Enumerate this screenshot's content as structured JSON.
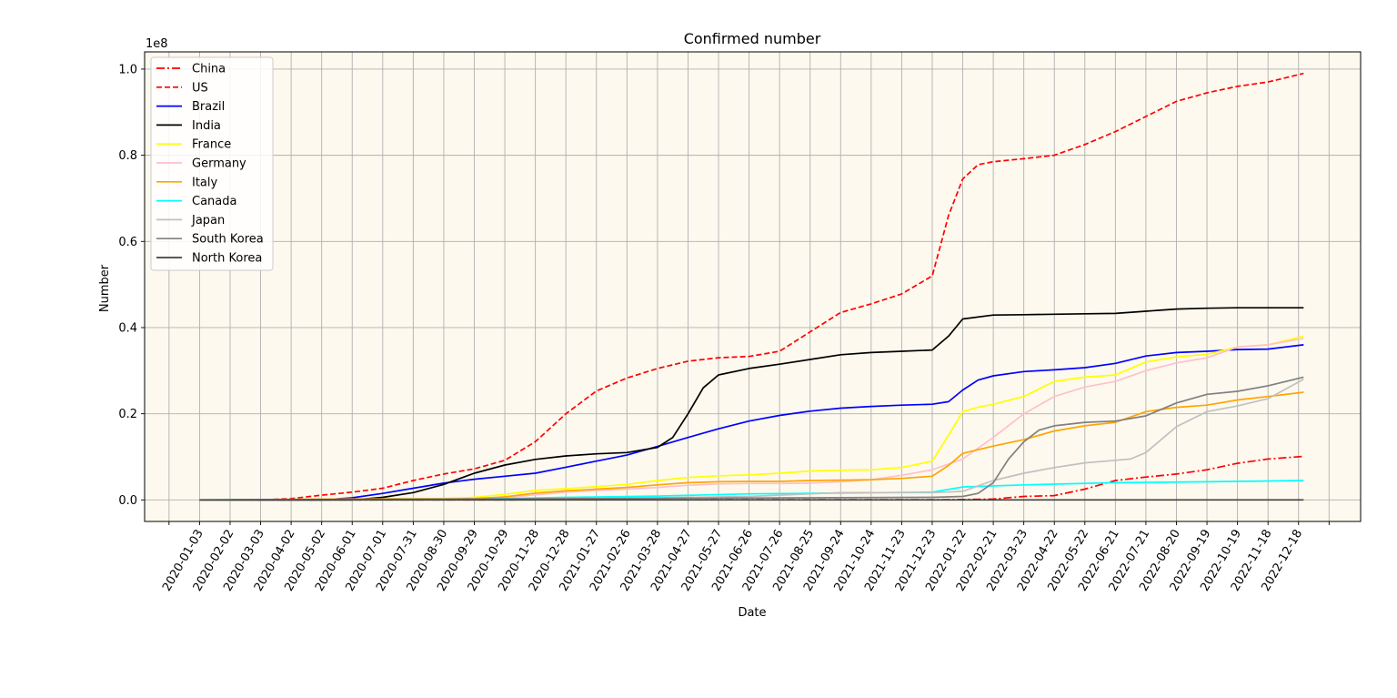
{
  "chart_data": {
    "type": "line",
    "title": "Confirmed number",
    "xlabel": "Date",
    "ylabel": "Number",
    "y_offset_label": "1e8",
    "ylim": [
      -0.05,
      1.04
    ],
    "y_unit_multiplier": 100000000,
    "yticks": [
      0.0,
      0.2,
      0.4,
      0.6,
      0.8,
      1.0
    ],
    "ytick_labels": [
      "0.0",
      "0.2",
      "0.4",
      "0.6",
      "0.8",
      "1.0"
    ],
    "xlim": [
      "2019-11-10",
      "2023-02-17"
    ],
    "xticks": [
      "2020-01-03",
      "2020-02-02",
      "2020-03-03",
      "2020-04-02",
      "2020-05-02",
      "2020-06-01",
      "2020-07-01",
      "2020-07-31",
      "2020-08-30",
      "2020-09-29",
      "2020-10-29",
      "2020-11-28",
      "2020-12-28",
      "2021-01-27",
      "2021-02-26",
      "2021-03-28",
      "2021-04-27",
      "2021-05-27",
      "2021-06-26",
      "2021-07-26",
      "2021-08-25",
      "2021-09-24",
      "2021-10-24",
      "2021-11-23",
      "2021-12-23",
      "2022-01-22",
      "2022-02-21",
      "2022-03-23",
      "2022-04-22",
      "2022-05-22",
      "2022-06-21",
      "2022-07-21",
      "2022-08-20",
      "2022-09-19",
      "2022-10-19",
      "2022-11-18",
      "2022-12-18"
    ],
    "grid": true,
    "background": "#fdf9ee",
    "legend_position": "top-left",
    "series": [
      {
        "name": "China",
        "color": "#ff0000",
        "style": "dashdot",
        "x": [
          "2020-01-03",
          "2021-12-23",
          "2022-01-22",
          "2022-02-21",
          "2022-03-23",
          "2022-04-22",
          "2022-05-22",
          "2022-06-21",
          "2022-07-21",
          "2022-08-20",
          "2022-09-19",
          "2022-10-19",
          "2022-11-18",
          "2022-12-23"
        ],
        "y": [
          0.0,
          0.0005,
          0.001,
          0.002,
          0.008,
          0.01,
          0.025,
          0.045,
          0.053,
          0.06,
          0.07,
          0.085,
          0.095,
          0.101
        ]
      },
      {
        "name": "US",
        "color": "#ff0000",
        "style": "dashed",
        "x": [
          "2020-01-03",
          "2020-03-03",
          "2020-04-02",
          "2020-05-02",
          "2020-06-01",
          "2020-07-01",
          "2020-07-31",
          "2020-08-30",
          "2020-09-29",
          "2020-10-29",
          "2020-11-28",
          "2020-12-28",
          "2021-01-27",
          "2021-02-26",
          "2021-03-28",
          "2021-04-27",
          "2021-05-27",
          "2021-06-26",
          "2021-07-26",
          "2021-08-25",
          "2021-09-24",
          "2021-10-24",
          "2021-11-23",
          "2021-12-23",
          "2022-01-08",
          "2022-01-22",
          "2022-02-06",
          "2022-02-21",
          "2022-03-23",
          "2022-04-22",
          "2022-05-22",
          "2022-06-21",
          "2022-07-21",
          "2022-08-20",
          "2022-09-19",
          "2022-10-19",
          "2022-11-18",
          "2022-12-23"
        ],
        "y": [
          0.0,
          0.0,
          0.003,
          0.011,
          0.018,
          0.027,
          0.045,
          0.06,
          0.072,
          0.092,
          0.135,
          0.2,
          0.253,
          0.283,
          0.305,
          0.322,
          0.33,
          0.333,
          0.345,
          0.39,
          0.435,
          0.455,
          0.478,
          0.52,
          0.66,
          0.745,
          0.778,
          0.785,
          0.792,
          0.8,
          0.825,
          0.855,
          0.89,
          0.925,
          0.945,
          0.96,
          0.97,
          0.99
        ]
      },
      {
        "name": "Brazil",
        "color": "#0000ff",
        "style": "solid",
        "x": [
          "2020-01-03",
          "2020-05-02",
          "2020-06-01",
          "2020-07-01",
          "2020-07-31",
          "2020-08-30",
          "2020-09-29",
          "2020-10-29",
          "2020-11-28",
          "2020-12-28",
          "2021-01-27",
          "2021-02-26",
          "2021-03-28",
          "2021-04-27",
          "2021-05-27",
          "2021-06-26",
          "2021-07-26",
          "2021-08-25",
          "2021-09-24",
          "2021-10-24",
          "2021-11-23",
          "2021-12-23",
          "2022-01-08",
          "2022-01-22",
          "2022-02-06",
          "2022-02-21",
          "2022-03-23",
          "2022-04-22",
          "2022-05-22",
          "2022-06-21",
          "2022-07-21",
          "2022-08-20",
          "2022-09-19",
          "2022-10-19",
          "2022-11-18",
          "2022-12-23"
        ],
        "y": [
          0.0,
          0.0,
          0.005,
          0.015,
          0.027,
          0.039,
          0.048,
          0.055,
          0.062,
          0.076,
          0.09,
          0.104,
          0.124,
          0.145,
          0.165,
          0.183,
          0.196,
          0.206,
          0.213,
          0.217,
          0.22,
          0.222,
          0.228,
          0.255,
          0.278,
          0.288,
          0.298,
          0.302,
          0.307,
          0.317,
          0.334,
          0.342,
          0.345,
          0.349,
          0.35,
          0.36
        ]
      },
      {
        "name": "India",
        "color": "#000000",
        "style": "solid",
        "x": [
          "2020-01-03",
          "2020-05-02",
          "2020-06-01",
          "2020-07-01",
          "2020-07-31",
          "2020-08-30",
          "2020-09-29",
          "2020-10-29",
          "2020-11-28",
          "2020-12-28",
          "2021-01-27",
          "2021-02-26",
          "2021-03-28",
          "2021-04-12",
          "2021-04-27",
          "2021-05-12",
          "2021-05-27",
          "2021-06-26",
          "2021-07-26",
          "2021-08-25",
          "2021-09-24",
          "2021-10-24",
          "2021-11-23",
          "2021-12-23",
          "2022-01-08",
          "2022-01-22",
          "2022-02-21",
          "2022-03-23",
          "2022-04-22",
          "2022-05-22",
          "2022-06-21",
          "2022-07-21",
          "2022-08-20",
          "2022-09-19",
          "2022-10-19",
          "2022-11-18",
          "2022-12-23"
        ],
        "y": [
          0.0,
          0.0,
          0.0,
          0.006,
          0.017,
          0.036,
          0.062,
          0.081,
          0.094,
          0.102,
          0.107,
          0.11,
          0.122,
          0.145,
          0.2,
          0.26,
          0.29,
          0.305,
          0.315,
          0.326,
          0.337,
          0.342,
          0.345,
          0.348,
          0.38,
          0.42,
          0.429,
          0.43,
          0.431,
          0.432,
          0.433,
          0.438,
          0.443,
          0.445,
          0.446,
          0.446,
          0.446
        ]
      },
      {
        "name": "France",
        "color": "#ffff00",
        "style": "solid",
        "x": [
          "2020-01-03",
          "2020-08-30",
          "2020-09-29",
          "2020-10-29",
          "2020-11-28",
          "2020-12-28",
          "2021-01-27",
          "2021-02-26",
          "2021-03-28",
          "2021-04-27",
          "2021-05-27",
          "2021-06-26",
          "2021-07-26",
          "2021-08-25",
          "2021-09-24",
          "2021-10-24",
          "2021-11-23",
          "2021-12-23",
          "2022-01-08",
          "2022-01-22",
          "2022-02-06",
          "2022-02-21",
          "2022-03-23",
          "2022-04-22",
          "2022-05-22",
          "2022-06-21",
          "2022-07-21",
          "2022-08-20",
          "2022-09-19",
          "2022-10-19",
          "2022-11-18",
          "2022-12-23"
        ],
        "y": [
          0.0,
          0.003,
          0.006,
          0.013,
          0.022,
          0.026,
          0.031,
          0.036,
          0.045,
          0.052,
          0.056,
          0.058,
          0.062,
          0.067,
          0.069,
          0.07,
          0.075,
          0.09,
          0.15,
          0.205,
          0.215,
          0.222,
          0.24,
          0.275,
          0.285,
          0.29,
          0.32,
          0.332,
          0.338,
          0.355,
          0.36,
          0.38
        ]
      },
      {
        "name": "Germany",
        "color": "#ffc0cb",
        "style": "solid",
        "x": [
          "2020-01-03",
          "2020-09-29",
          "2020-10-29",
          "2020-11-28",
          "2020-12-28",
          "2021-01-27",
          "2021-02-26",
          "2021-03-28",
          "2021-04-27",
          "2021-05-27",
          "2021-06-26",
          "2021-07-26",
          "2021-08-25",
          "2021-09-24",
          "2021-10-24",
          "2021-11-23",
          "2021-12-23",
          "2022-01-22",
          "2022-02-21",
          "2022-03-23",
          "2022-04-22",
          "2022-05-22",
          "2022-06-21",
          "2022-07-21",
          "2022-08-20",
          "2022-09-19",
          "2022-10-19",
          "2022-11-18",
          "2022-12-23"
        ],
        "y": [
          0.0,
          0.003,
          0.005,
          0.012,
          0.018,
          0.022,
          0.025,
          0.029,
          0.034,
          0.037,
          0.038,
          0.038,
          0.039,
          0.042,
          0.047,
          0.057,
          0.07,
          0.095,
          0.145,
          0.2,
          0.24,
          0.262,
          0.275,
          0.3,
          0.318,
          0.33,
          0.355,
          0.36,
          0.375
        ]
      },
      {
        "name": "Italy",
        "color": "#ffa500",
        "style": "solid",
        "x": [
          "2020-01-03",
          "2020-03-03",
          "2020-04-02",
          "2020-06-01",
          "2020-08-30",
          "2020-09-29",
          "2020-10-29",
          "2020-11-28",
          "2020-12-28",
          "2021-01-27",
          "2021-02-26",
          "2021-03-28",
          "2021-04-27",
          "2021-05-27",
          "2021-06-26",
          "2021-07-26",
          "2021-08-25",
          "2021-09-24",
          "2021-10-24",
          "2021-11-23",
          "2021-12-23",
          "2022-01-08",
          "2022-01-22",
          "2022-02-21",
          "2022-03-23",
          "2022-04-22",
          "2022-05-22",
          "2022-06-21",
          "2022-07-21",
          "2022-08-20",
          "2022-09-19",
          "2022-10-19",
          "2022-11-18",
          "2022-12-23"
        ],
        "y": [
          0.0,
          0.0,
          0.001,
          0.0023,
          0.0027,
          0.003,
          0.007,
          0.016,
          0.021,
          0.025,
          0.029,
          0.035,
          0.04,
          0.042,
          0.043,
          0.043,
          0.045,
          0.046,
          0.047,
          0.05,
          0.055,
          0.08,
          0.108,
          0.125,
          0.14,
          0.16,
          0.172,
          0.18,
          0.205,
          0.215,
          0.22,
          0.232,
          0.24,
          0.25
        ]
      },
      {
        "name": "Canada",
        "color": "#00ffff",
        "style": "solid",
        "x": [
          "2020-01-03",
          "2020-05-02",
          "2020-09-29",
          "2020-12-28",
          "2021-03-28",
          "2021-06-26",
          "2021-09-24",
          "2021-12-23",
          "2022-01-22",
          "2022-03-23",
          "2022-06-21",
          "2022-09-19",
          "2022-12-23"
        ],
        "y": [
          0.0,
          0.0006,
          0.0015,
          0.006,
          0.009,
          0.014,
          0.016,
          0.018,
          0.03,
          0.035,
          0.04,
          0.042,
          0.045
        ]
      },
      {
        "name": "Japan",
        "color": "#c0c0c0",
        "style": "solid",
        "x": [
          "2020-01-03",
          "2020-12-28",
          "2021-03-28",
          "2021-06-26",
          "2021-08-25",
          "2021-09-24",
          "2021-12-23",
          "2022-01-22",
          "2022-02-21",
          "2022-03-23",
          "2022-04-22",
          "2022-05-22",
          "2022-06-21",
          "2022-07-06",
          "2022-07-21",
          "2022-08-20",
          "2022-09-19",
          "2022-10-19",
          "2022-11-18",
          "2022-12-23"
        ],
        "y": [
          0.0,
          0.002,
          0.005,
          0.008,
          0.014,
          0.017,
          0.017,
          0.02,
          0.045,
          0.062,
          0.075,
          0.086,
          0.092,
          0.095,
          0.11,
          0.17,
          0.205,
          0.218,
          0.235,
          0.28
        ]
      },
      {
        "name": "South Korea",
        "color": "#808080",
        "style": "solid",
        "x": [
          "2020-01-03",
          "2021-12-23",
          "2022-01-22",
          "2022-02-06",
          "2022-02-21",
          "2022-03-08",
          "2022-03-23",
          "2022-04-07",
          "2022-04-22",
          "2022-05-22",
          "2022-06-21",
          "2022-07-21",
          "2022-08-20",
          "2022-09-19",
          "2022-10-19",
          "2022-11-18",
          "2022-12-23"
        ],
        "y": [
          0.0,
          0.006,
          0.008,
          0.015,
          0.04,
          0.095,
          0.135,
          0.162,
          0.172,
          0.18,
          0.183,
          0.195,
          0.225,
          0.245,
          0.252,
          0.265,
          0.285
        ]
      },
      {
        "name": "North Korea",
        "color": "#404040",
        "style": "solid",
        "x": [
          "2020-01-03",
          "2022-12-23"
        ],
        "y": [
          0.0,
          0.0
        ]
      }
    ]
  }
}
